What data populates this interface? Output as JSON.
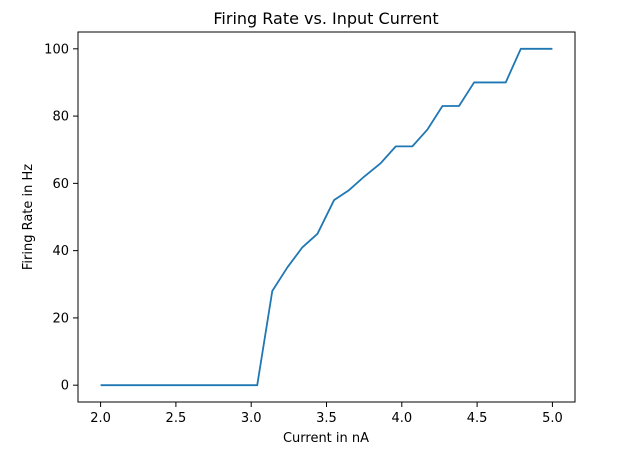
{
  "chart_data": {
    "type": "line",
    "title": "Firing Rate vs. Input Current",
    "xlabel": "Current in nA",
    "ylabel": "Firing Rate in Hz",
    "xlim": [
      1.85,
      5.15
    ],
    "ylim": [
      -5,
      105
    ],
    "xticks": [
      2.0,
      2.5,
      3.0,
      3.5,
      4.0,
      4.5,
      5.0
    ],
    "xtick_labels": [
      "2.0",
      "2.5",
      "3.0",
      "3.5",
      "4.0",
      "4.5",
      "5.0"
    ],
    "yticks": [
      0,
      20,
      40,
      60,
      80,
      100
    ],
    "ytick_labels": [
      "0",
      "20",
      "40",
      "60",
      "80",
      "100"
    ],
    "grid": false,
    "series": [
      {
        "color": "#1f77b4",
        "x": [
          2.0,
          2.1,
          2.2,
          2.3,
          2.4,
          2.5,
          2.6,
          2.7,
          2.8,
          2.9,
          3.04,
          3.14,
          3.24,
          3.34,
          3.44,
          3.55,
          3.65,
          3.75,
          3.86,
          3.96,
          4.07,
          4.17,
          4.27,
          4.38,
          4.48,
          4.69,
          4.79,
          5.0
        ],
        "y": [
          0,
          0,
          0,
          0,
          0,
          0,
          0,
          0,
          0,
          0,
          0,
          28,
          35,
          41,
          45,
          55,
          58,
          62,
          66,
          71,
          71,
          76,
          83,
          83,
          90,
          90,
          100,
          100
        ]
      }
    ]
  }
}
